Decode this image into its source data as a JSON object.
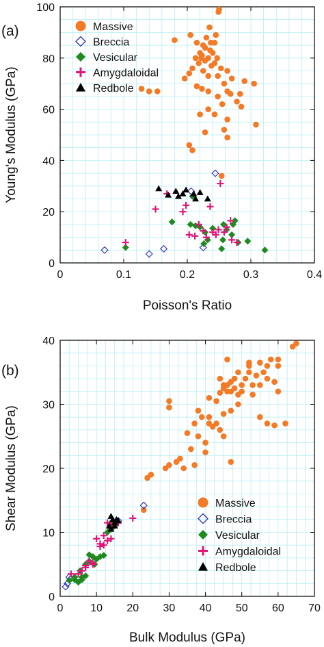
{
  "colors": {
    "Massive": "#F47A26",
    "Breccia": "#2A2ABF",
    "Vesicular": "#1F8A1F",
    "Amygdaloidal": "#E0157A",
    "Redbole": "#000000",
    "grid": "#B7EEF6"
  },
  "chart_data": [
    {
      "type": "scatter",
      "panel_label": "(a)",
      "xlabel": "Poisson's Ratio",
      "ylabel": "Young's Modulus (GPa)",
      "xlim": [
        0,
        0.4
      ],
      "ylim": [
        0,
        100
      ],
      "xticks": [
        "0",
        "0.1",
        "0.2",
        "0.3",
        "0.4"
      ],
      "yticks": [
        "0",
        "20",
        "40",
        "60",
        "80",
        "100"
      ],
      "grid": true,
      "legend": "top-left",
      "series": [
        {
          "name": "Massive",
          "marker": "circle",
          "points": [
            [
              0.249,
              98
            ],
            [
              0.25,
              99
            ],
            [
              0.235,
              92
            ],
            [
              0.245,
              89
            ],
            [
              0.23,
              88
            ],
            [
              0.205,
              89
            ],
            [
              0.215,
              86
            ],
            [
              0.243,
              86
            ],
            [
              0.225,
              85
            ],
            [
              0.228,
              84
            ],
            [
              0.236,
              83
            ],
            [
              0.22,
              82
            ],
            [
              0.24,
              82
            ],
            [
              0.223,
              81
            ],
            [
              0.233,
              80
            ],
            [
              0.213,
              80
            ],
            [
              0.228,
              79
            ],
            [
              0.243,
              78
            ],
            [
              0.218,
              78
            ],
            [
              0.238,
              77
            ],
            [
              0.208,
              76
            ],
            [
              0.253,
              76
            ],
            [
              0.263,
              75
            ],
            [
              0.225,
              75
            ],
            [
              0.203,
              74
            ],
            [
              0.248,
              73
            ],
            [
              0.233,
              73
            ],
            [
              0.196,
              72
            ],
            [
              0.27,
              72
            ],
            [
              0.29,
              71
            ],
            [
              0.305,
              70
            ],
            [
              0.258,
              70
            ],
            [
              0.215,
              69
            ],
            [
              0.223,
              68
            ],
            [
              0.233,
              67
            ],
            [
              0.263,
              67
            ],
            [
              0.268,
              66
            ],
            [
              0.283,
              66
            ],
            [
              0.153,
              67
            ],
            [
              0.128,
              68
            ],
            [
              0.14,
              67
            ],
            [
              0.248,
              65
            ],
            [
              0.278,
              63
            ],
            [
              0.255,
              62
            ],
            [
              0.233,
              60
            ],
            [
              0.285,
              61
            ],
            [
              0.243,
              58
            ],
            [
              0.263,
              56
            ],
            [
              0.22,
              58
            ],
            [
              0.308,
              54
            ],
            [
              0.258,
              52
            ],
            [
              0.228,
              51
            ],
            [
              0.263,
              49
            ],
            [
              0.203,
              46
            ],
            [
              0.208,
              44
            ],
            [
              0.254,
              34
            ],
            [
              0.18,
              87
            ],
            [
              0.237,
              86
            ],
            [
              0.222,
              80
            ],
            [
              0.247,
              80
            ]
          ]
        },
        {
          "name": "Breccia",
          "marker": "diamond-open",
          "points": [
            [
              0.07,
              5
            ],
            [
              0.14,
              3.5
            ],
            [
              0.163,
              5.5
            ],
            [
              0.225,
              6
            ],
            [
              0.244,
              35
            ],
            [
              0.206,
              28
            ]
          ]
        },
        {
          "name": "Vesicular",
          "marker": "diamond",
          "points": [
            [
              0.103,
              6
            ],
            [
              0.176,
              16
            ],
            [
              0.205,
              15
            ],
            [
              0.213,
              14.5
            ],
            [
              0.22,
              14
            ],
            [
              0.228,
              12
            ],
            [
              0.226,
              7.5
            ],
            [
              0.232,
              9
            ],
            [
              0.24,
              13.5
            ],
            [
              0.254,
              5.5
            ],
            [
              0.256,
              9
            ],
            [
              0.257,
              15
            ],
            [
              0.262,
              13
            ],
            [
              0.27,
              11
            ],
            [
              0.272,
              15
            ],
            [
              0.275,
              16.5
            ],
            [
              0.28,
              8
            ],
            [
              0.295,
              8.5
            ],
            [
              0.322,
              5
            ],
            [
              0.208,
              26
            ]
          ]
        },
        {
          "name": "Amygdaloidal",
          "marker": "plus",
          "points": [
            [
              0.103,
              8
            ],
            [
              0.15,
              21
            ],
            [
              0.168,
              27
            ],
            [
              0.193,
              20
            ],
            [
              0.198,
              22.5
            ],
            [
              0.203,
              11
            ],
            [
              0.212,
              10.5
            ],
            [
              0.218,
              15
            ],
            [
              0.225,
              12.5
            ],
            [
              0.23,
              10
            ],
            [
              0.236,
              22
            ],
            [
              0.24,
              12
            ],
            [
              0.245,
              11
            ],
            [
              0.249,
              13
            ],
            [
              0.252,
              31
            ],
            [
              0.258,
              12
            ],
            [
              0.262,
              14
            ],
            [
              0.268,
              16.5
            ],
            [
              0.27,
              9
            ],
            [
              0.278,
              8
            ]
          ]
        },
        {
          "name": "Redbole",
          "marker": "triangle",
          "points": [
            [
              0.155,
              29
            ],
            [
              0.17,
              26.5
            ],
            [
              0.182,
              28
            ],
            [
              0.186,
              26
            ],
            [
              0.193,
              27
            ],
            [
              0.198,
              28.5
            ],
            [
              0.21,
              27
            ],
            [
              0.213,
              25
            ],
            [
              0.22,
              27.5
            ],
            [
              0.232,
              25
            ]
          ]
        }
      ]
    },
    {
      "type": "scatter",
      "panel_label": "(b)",
      "xlabel": "Bulk Modulus (GPa)",
      "ylabel": "Shear Modulus (GPa)",
      "xlim": [
        0,
        70
      ],
      "ylim": [
        0,
        40
      ],
      "xticks": [
        "0",
        "10",
        "20",
        "30",
        "40",
        "50",
        "60",
        "70"
      ],
      "yticks": [
        "0",
        "10",
        "20",
        "30",
        "40"
      ],
      "grid": true,
      "legend": "bottom-right",
      "series": [
        {
          "name": "Massive",
          "marker": "circle",
          "points": [
            [
              65,
              39.5
            ],
            [
              64,
              39
            ],
            [
              58,
              37
            ],
            [
              60,
              37
            ],
            [
              55,
              36.5
            ],
            [
              46,
              37
            ],
            [
              52,
              36
            ],
            [
              57,
              36
            ],
            [
              49,
              35
            ],
            [
              54,
              34.5
            ],
            [
              60,
              36
            ],
            [
              44,
              34
            ],
            [
              45,
              33
            ],
            [
              47,
              33.5
            ],
            [
              46,
              32
            ],
            [
              50,
              32
            ],
            [
              55,
              33
            ],
            [
              52,
              35
            ],
            [
              48,
              34
            ],
            [
              53,
              33
            ],
            [
              57,
              34
            ],
            [
              59,
              33.5
            ],
            [
              45,
              32.5
            ],
            [
              47,
              32
            ],
            [
              49,
              31.5
            ],
            [
              50,
              33
            ],
            [
              53,
              31.5
            ],
            [
              44,
              31.8
            ],
            [
              46,
              33
            ],
            [
              48,
              32.5
            ],
            [
              51,
              34
            ],
            [
              56,
              35
            ],
            [
              41,
              31
            ],
            [
              43,
              30.5
            ],
            [
              38,
              29
            ],
            [
              39,
              28
            ],
            [
              37,
              27
            ],
            [
              41,
              27
            ],
            [
              38,
              25
            ],
            [
              40,
              24
            ],
            [
              35,
              25.5
            ],
            [
              36,
              23
            ],
            [
              40,
              22.5
            ],
            [
              43,
              27
            ],
            [
              45,
              28.5
            ],
            [
              47,
              29
            ],
            [
              49,
              30
            ],
            [
              30,
              30.5
            ],
            [
              30,
              29.5
            ],
            [
              41,
              28
            ],
            [
              44,
              26
            ],
            [
              42,
              26.5
            ],
            [
              45,
              25
            ],
            [
              47,
              21
            ],
            [
              57,
              27
            ],
            [
              62,
              27
            ],
            [
              55,
              28
            ],
            [
              59,
              26.7
            ],
            [
              60,
              32
            ],
            [
              37,
              20.5
            ],
            [
              33,
              21.5
            ],
            [
              32,
              21
            ],
            [
              34,
              20
            ],
            [
              30,
              20.5
            ],
            [
              25,
              19
            ],
            [
              24,
              18.5
            ],
            [
              23,
              13.5
            ],
            [
              29,
              20
            ],
            [
              52,
              36.5
            ]
          ]
        },
        {
          "name": "Breccia",
          "marker": "diamond-open",
          "points": [
            [
              1.5,
              1.5
            ],
            [
              2,
              2
            ],
            [
              3,
              2.8
            ],
            [
              2.5,
              3
            ],
            [
              23,
              14.2
            ],
            [
              16,
              11.8
            ]
          ]
        },
        {
          "name": "Vesicular",
          "marker": "diamond",
          "points": [
            [
              2.5,
              2.5
            ],
            [
              4,
              3
            ],
            [
              5,
              2.2
            ],
            [
              6,
              2.6
            ],
            [
              5.5,
              4
            ],
            [
              7,
              5
            ],
            [
              8,
              5.5
            ],
            [
              9,
              6.2
            ],
            [
              8,
              6.5
            ],
            [
              9.5,
              5
            ],
            [
              11,
              6.2
            ],
            [
              12,
              6.4
            ],
            [
              13,
              10
            ],
            [
              14,
              10.5
            ],
            [
              15,
              11
            ],
            [
              14,
              11.5
            ],
            [
              6,
              3
            ],
            [
              7,
              3.2
            ],
            [
              4,
              2.6
            ],
            [
              10,
              5.8
            ]
          ]
        },
        {
          "name": "Amygdaloidal",
          "marker": "plus",
          "points": [
            [
              3,
              3.5
            ],
            [
              5,
              3.5
            ],
            [
              6,
              4
            ],
            [
              7,
              4.5
            ],
            [
              8,
              5.5
            ],
            [
              9,
              5.2
            ],
            [
              10,
              9
            ],
            [
              11,
              8.2
            ],
            [
              12,
              9.5
            ],
            [
              13,
              8.7
            ],
            [
              14,
              9
            ],
            [
              14,
              11
            ],
            [
              15,
              11.2
            ],
            [
              16,
              11.5
            ],
            [
              20,
              12.2
            ],
            [
              13,
              11.5
            ],
            [
              12,
              8
            ],
            [
              11,
              7.8
            ],
            [
              9,
              5
            ],
            [
              7,
              4.8
            ]
          ]
        },
        {
          "name": "Redbole",
          "marker": "triangle",
          "points": [
            [
              14,
              12.5
            ],
            [
              14.5,
              12
            ],
            [
              15,
              11.5
            ],
            [
              13.5,
              11
            ],
            [
              15,
              11
            ],
            [
              14,
              10.5
            ],
            [
              15.5,
              12
            ],
            [
              16,
              11.8
            ]
          ]
        }
      ]
    }
  ]
}
